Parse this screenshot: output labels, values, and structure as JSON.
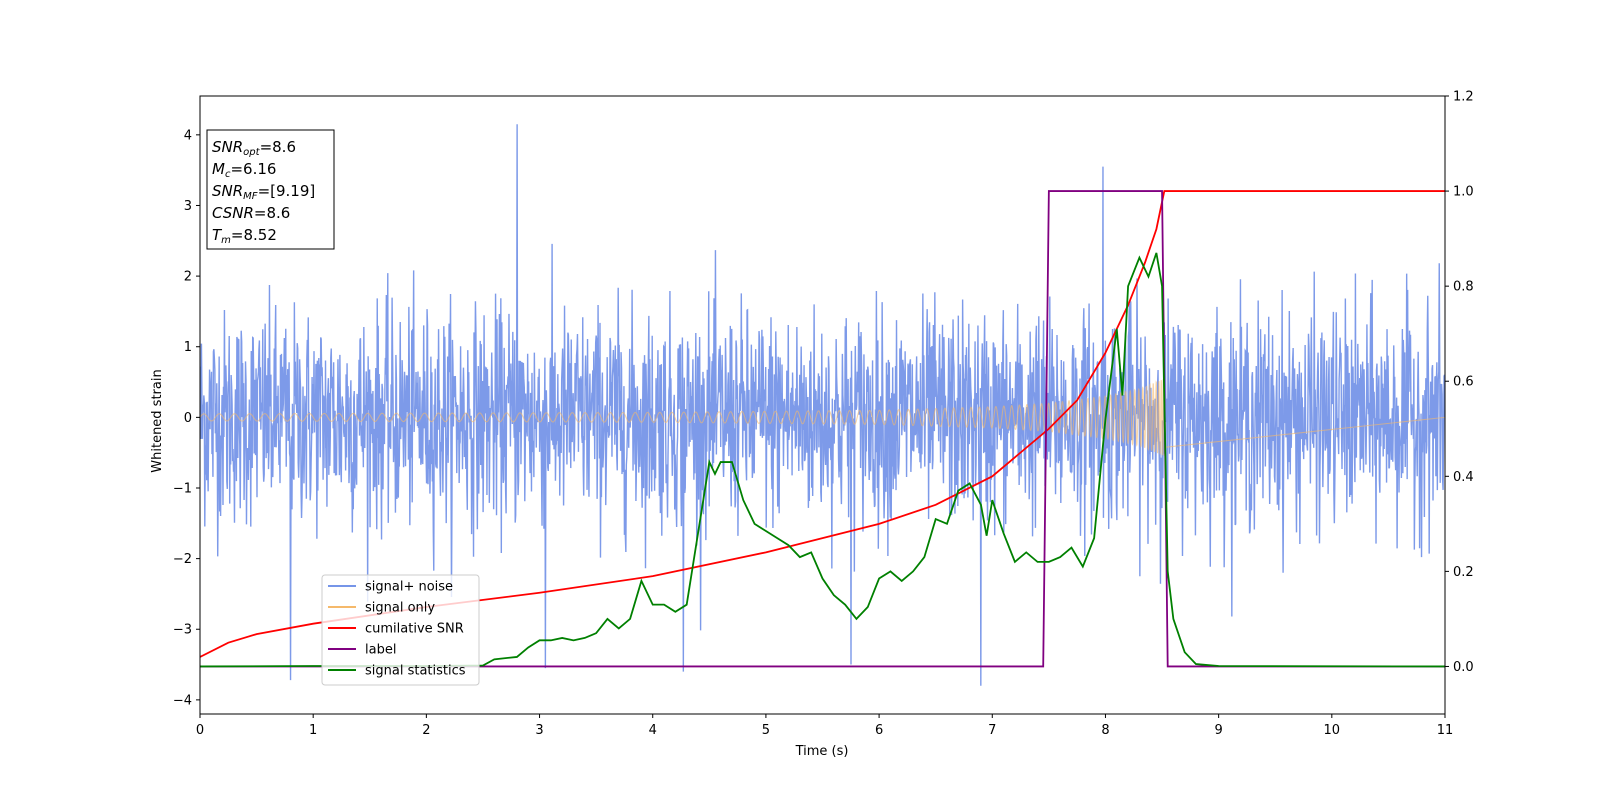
{
  "chart_data": {
    "type": "line",
    "xlabel": "Time (s)",
    "ylabel": "Whitened strain",
    "xlim": [
      0,
      11
    ],
    "ylim_left": [
      -4.2,
      4.55
    ],
    "ylim_right": [
      -0.1,
      1.2
    ],
    "x_ticks": [
      "0",
      "1",
      "2",
      "3",
      "4",
      "5",
      "6",
      "7",
      "8",
      "9",
      "10",
      "11"
    ],
    "y_left_ticks": [
      "−4",
      "−3",
      "−2",
      "−1",
      "0",
      "1",
      "2",
      "3",
      "4"
    ],
    "y_right_ticks": [
      "0.0",
      "0.2",
      "0.4",
      "0.6",
      "0.8",
      "1.0",
      "1.2"
    ],
    "grid": false,
    "legend_location": "lower-left",
    "info_box": {
      "location": "upper-left",
      "lines": [
        {
          "var": "SNR",
          "sub": "opt",
          "value": "=8.6"
        },
        {
          "var": "M",
          "sub": "c",
          "value": "=6.16"
        },
        {
          "var": "SNR",
          "sub": "MF",
          "value": "=[9.19]"
        },
        {
          "var": "CSNR",
          "sub": "",
          "value": "=8.6"
        },
        {
          "var": "T",
          "sub": "m",
          "value": "=8.52"
        }
      ]
    },
    "series": [
      {
        "name": "signal+ noise",
        "axis": "left",
        "color": "#7695e8",
        "kind": "noise",
        "amplitude_sigma": 0.75,
        "noise_peaks": [
          [
            2.8,
            4.15
          ],
          [
            7.98,
            3.55
          ],
          [
            6.9,
            -3.8
          ],
          [
            0.8,
            -3.72
          ],
          [
            4.27,
            -3.6
          ],
          [
            3.05,
            -3.55
          ],
          [
            5.75,
            -3.5
          ]
        ]
      },
      {
        "name": "signal only",
        "axis": "left",
        "color": "#f5b96b",
        "kind": "chirp",
        "t_merge": 8.52,
        "envelope": [
          [
            0.0,
            0.05
          ],
          [
            2.0,
            0.06
          ],
          [
            4.0,
            0.07
          ],
          [
            6.0,
            0.1
          ],
          [
            7.0,
            0.15
          ],
          [
            7.5,
            0.2
          ],
          [
            8.0,
            0.3
          ],
          [
            8.3,
            0.4
          ],
          [
            8.45,
            0.5
          ],
          [
            8.52,
            0.55
          ]
        ]
      },
      {
        "name": "cumilative SNR",
        "axis": "right",
        "color": "#ff0000",
        "points": [
          [
            0.0,
            0.02
          ],
          [
            0.25,
            0.05
          ],
          [
            0.5,
            0.068
          ],
          [
            1.0,
            0.09
          ],
          [
            2.0,
            0.125
          ],
          [
            3.0,
            0.155
          ],
          [
            4.0,
            0.19
          ],
          [
            5.0,
            0.24
          ],
          [
            6.0,
            0.3
          ],
          [
            6.5,
            0.34
          ],
          [
            7.0,
            0.4
          ],
          [
            7.5,
            0.5
          ],
          [
            7.75,
            0.56
          ],
          [
            8.0,
            0.66
          ],
          [
            8.2,
            0.76
          ],
          [
            8.35,
            0.85
          ],
          [
            8.45,
            0.92
          ],
          [
            8.52,
            1.0
          ],
          [
            11.0,
            1.0
          ]
        ]
      },
      {
        "name": "label",
        "axis": "right",
        "color": "#800080",
        "points": [
          [
            0.0,
            0.0
          ],
          [
            7.45,
            0.0
          ],
          [
            7.5,
            1.0
          ],
          [
            8.5,
            1.0
          ],
          [
            8.55,
            0.0
          ],
          [
            11.0,
            0.0
          ]
        ]
      },
      {
        "name": "signal statistics",
        "axis": "right",
        "color": "#008000",
        "points": [
          [
            0.0,
            0.0
          ],
          [
            1.0,
            0.001
          ],
          [
            2.0,
            0.001
          ],
          [
            2.5,
            0.002
          ],
          [
            2.6,
            0.015
          ],
          [
            2.8,
            0.02
          ],
          [
            2.9,
            0.04
          ],
          [
            3.0,
            0.055
          ],
          [
            3.1,
            0.055
          ],
          [
            3.2,
            0.06
          ],
          [
            3.3,
            0.055
          ],
          [
            3.4,
            0.06
          ],
          [
            3.5,
            0.07
          ],
          [
            3.6,
            0.1
          ],
          [
            3.7,
            0.08
          ],
          [
            3.8,
            0.1
          ],
          [
            3.9,
            0.18
          ],
          [
            4.0,
            0.13
          ],
          [
            4.1,
            0.13
          ],
          [
            4.2,
            0.115
          ],
          [
            4.3,
            0.13
          ],
          [
            4.4,
            0.28
          ],
          [
            4.5,
            0.43
          ],
          [
            4.55,
            0.405
          ],
          [
            4.6,
            0.43
          ],
          [
            4.7,
            0.43
          ],
          [
            4.8,
            0.35
          ],
          [
            4.9,
            0.3
          ],
          [
            5.0,
            0.285
          ],
          [
            5.1,
            0.27
          ],
          [
            5.2,
            0.255
          ],
          [
            5.3,
            0.23
          ],
          [
            5.4,
            0.24
          ],
          [
            5.5,
            0.185
          ],
          [
            5.6,
            0.15
          ],
          [
            5.7,
            0.13
          ],
          [
            5.8,
            0.1
          ],
          [
            5.9,
            0.125
          ],
          [
            6.0,
            0.185
          ],
          [
            6.1,
            0.2
          ],
          [
            6.2,
            0.18
          ],
          [
            6.3,
            0.2
          ],
          [
            6.4,
            0.23
          ],
          [
            6.5,
            0.31
          ],
          [
            6.6,
            0.3
          ],
          [
            6.7,
            0.37
          ],
          [
            6.8,
            0.385
          ],
          [
            6.9,
            0.34
          ],
          [
            6.95,
            0.275
          ],
          [
            7.0,
            0.35
          ],
          [
            7.1,
            0.28
          ],
          [
            7.2,
            0.22
          ],
          [
            7.3,
            0.24
          ],
          [
            7.4,
            0.22
          ],
          [
            7.5,
            0.22
          ],
          [
            7.6,
            0.23
          ],
          [
            7.7,
            0.25
          ],
          [
            7.8,
            0.21
          ],
          [
            7.9,
            0.27
          ],
          [
            8.0,
            0.52
          ],
          [
            8.1,
            0.71
          ],
          [
            8.15,
            0.57
          ],
          [
            8.2,
            0.8
          ],
          [
            8.3,
            0.86
          ],
          [
            8.38,
            0.82
          ],
          [
            8.45,
            0.87
          ],
          [
            8.5,
            0.8
          ],
          [
            8.55,
            0.2
          ],
          [
            8.6,
            0.1
          ],
          [
            8.7,
            0.03
          ],
          [
            8.8,
            0.005
          ],
          [
            9.0,
            0.001
          ],
          [
            11.0,
            0.0
          ]
        ]
      }
    ]
  }
}
